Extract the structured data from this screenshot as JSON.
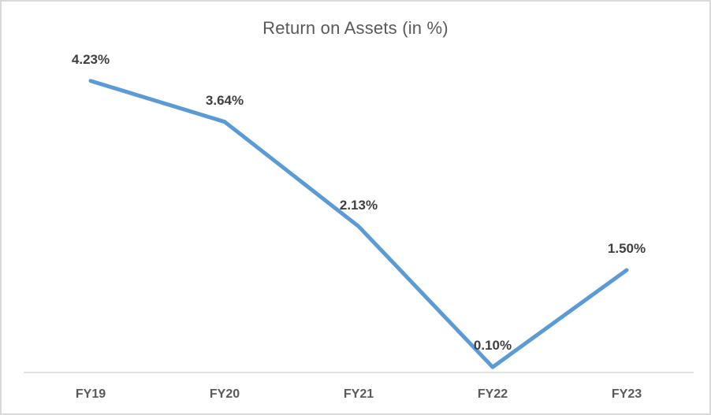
{
  "chart_data": {
    "type": "line",
    "title": "Return on Assets (in %)",
    "categories": [
      "FY19",
      "FY20",
      "FY21",
      "FY22",
      "FY23"
    ],
    "series": [
      {
        "values": [
          4.23,
          3.64,
          2.13,
          0.1,
          1.5
        ],
        "data_labels": [
          "4.23%",
          "3.64%",
          "2.13%",
          "0.10%",
          "1.50%"
        ],
        "color": "#5b9bd5"
      }
    ],
    "ylim": [
      0,
      4.5
    ],
    "grid": false,
    "legend_position": "none",
    "colors": {
      "title": "#595959",
      "data_label": "#3f3f3f",
      "axis_label": "#595959",
      "axis_line": "#d9d9d9",
      "background": "#ffffff",
      "border": "#d9d9d9"
    }
  }
}
